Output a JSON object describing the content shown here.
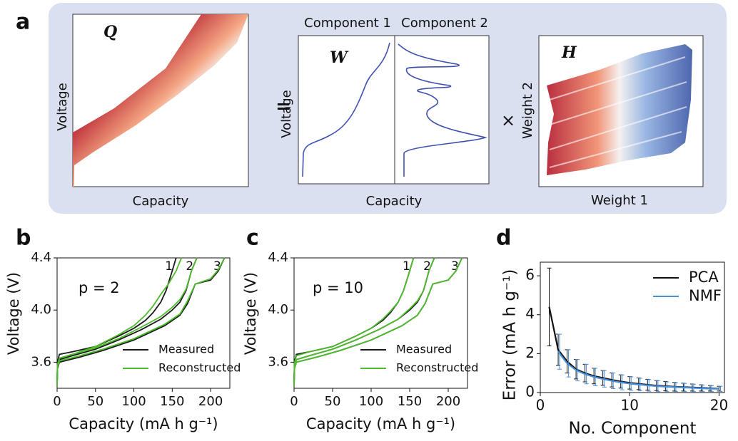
{
  "panel_a": {
    "label": "a",
    "q_title": "Q",
    "q_ylabel": "Voltage",
    "q_xlabel": "Capacity",
    "equals": "=",
    "w_component_1": "Component 1",
    "w_component_2": "Component 2",
    "w_title": "W",
    "w_ylabel": "Voltage",
    "w_xlabel": "Capacity",
    "times": "×",
    "h_title": "H",
    "h_ylabel": "Weight 2",
    "h_xlabel": "Weight 1"
  },
  "chart_data": [
    {
      "type": "line",
      "panel_label": "b",
      "annotation": "p = 2",
      "xlabel": "Capacity (mA h g⁻¹)",
      "ylabel": "Voltage (V)",
      "xlim": [
        0,
        225
      ],
      "ylim": [
        3.4,
        4.4
      ],
      "xticks": [
        0,
        50,
        100,
        150,
        200
      ],
      "yticks": [
        3.6,
        {
          "value": 4,
          "label": "4.0"
        },
        4.4
      ],
      "legend": "lower right",
      "series": [
        {
          "name": "Measured",
          "color": "#1a1a1a",
          "lines": [
            {
              "label": "1",
              "x": [
                0,
                0.5,
                3,
                20,
                50,
                80,
                100,
                115,
                125,
                135,
                142,
                150,
                155
              ],
              "values": [
                3.42,
                3.6,
                3.66,
                3.68,
                3.72,
                3.8,
                3.86,
                3.92,
                3.98,
                4.06,
                4.15,
                4.3,
                4.4
              ]
            },
            {
              "label": "2",
              "x": [
                0,
                0.5,
                3,
                20,
                50,
                80,
                110,
                135,
                150,
                160,
                168,
                175,
                182
              ],
              "values": [
                3.42,
                3.56,
                3.62,
                3.65,
                3.7,
                3.77,
                3.85,
                3.93,
                4.0,
                4.06,
                4.15,
                4.3,
                4.4
              ]
            },
            {
              "label": "3",
              "x": [
                0,
                0.5,
                3,
                30,
                60,
                100,
                140,
                160,
                170,
                180,
                200,
                210,
                218
              ],
              "values": [
                3.42,
                3.55,
                3.6,
                3.64,
                3.69,
                3.77,
                3.88,
                3.96,
                4.05,
                4.2,
                4.23,
                4.3,
                4.4
              ]
            }
          ]
        },
        {
          "name": "Reconstructed",
          "color": "#4cbb2c",
          "lines": [
            {
              "x": [
                0,
                0.5,
                3,
                20,
                50,
                80,
                100,
                115,
                125,
                135,
                145,
                155,
                162
              ],
              "values": [
                3.42,
                3.58,
                3.63,
                3.66,
                3.72,
                3.81,
                3.88,
                3.96,
                4.03,
                4.12,
                4.2,
                4.3,
                4.4
              ]
            },
            {
              "x": [
                0,
                0.5,
                3,
                20,
                50,
                80,
                110,
                135,
                150,
                160,
                168,
                175,
                182
              ],
              "values": [
                3.42,
                3.57,
                3.63,
                3.66,
                3.71,
                3.78,
                3.87,
                3.95,
                4.02,
                4.08,
                4.16,
                4.3,
                4.4
              ]
            },
            {
              "x": [
                0,
                0.5,
                3,
                30,
                60,
                100,
                140,
                160,
                170,
                180,
                200,
                210,
                218
              ],
              "values": [
                3.42,
                3.56,
                3.61,
                3.65,
                3.7,
                3.78,
                3.89,
                3.97,
                4.07,
                4.2,
                4.24,
                4.31,
                4.4
              ]
            }
          ]
        }
      ]
    },
    {
      "type": "line",
      "panel_label": "c",
      "annotation": "p = 10",
      "xlabel": "Capacity (mA h g⁻¹)",
      "ylabel": "Voltage (V)",
      "xlim": [
        0,
        225
      ],
      "ylim": [
        3.4,
        4.4
      ],
      "xticks": [
        0,
        50,
        100,
        150,
        200
      ],
      "yticks": [
        3.6,
        {
          "value": 4,
          "label": "4.0"
        },
        4.4
      ],
      "legend": "lower right",
      "series": [
        {
          "name": "Measured",
          "color": "#1a1a1a",
          "lines": [
            {
              "label": "1",
              "x": [
                0,
                0.5,
                3,
                20,
                50,
                80,
                100,
                115,
                125,
                135,
                142,
                150,
                155
              ],
              "values": [
                3.42,
                3.6,
                3.66,
                3.68,
                3.72,
                3.8,
                3.86,
                3.92,
                3.98,
                4.06,
                4.15,
                4.3,
                4.4
              ]
            },
            {
              "label": "2",
              "x": [
                0,
                0.5,
                3,
                20,
                50,
                80,
                110,
                135,
                150,
                160,
                168,
                175,
                182
              ],
              "values": [
                3.42,
                3.56,
                3.62,
                3.65,
                3.7,
                3.77,
                3.85,
                3.93,
                4.0,
                4.06,
                4.15,
                4.3,
                4.4
              ]
            },
            {
              "label": "3",
              "x": [
                0,
                0.5,
                3,
                30,
                60,
                100,
                140,
                160,
                170,
                180,
                200,
                210,
                218
              ],
              "values": [
                3.42,
                3.55,
                3.6,
                3.64,
                3.69,
                3.77,
                3.88,
                3.96,
                4.05,
                4.2,
                4.23,
                4.3,
                4.4
              ]
            }
          ]
        },
        {
          "name": "Reconstructed",
          "color": "#4cbb2c",
          "lines": [
            {
              "x": [
                0,
                0.5,
                3,
                20,
                50,
                80,
                100,
                115,
                125,
                135,
                142,
                150,
                155
              ],
              "values": [
                3.42,
                3.59,
                3.65,
                3.68,
                3.72,
                3.8,
                3.86,
                3.93,
                3.99,
                4.06,
                4.15,
                4.3,
                4.4
              ]
            },
            {
              "x": [
                0,
                0.5,
                3,
                20,
                50,
                80,
                110,
                135,
                150,
                160,
                168,
                175,
                182
              ],
              "values": [
                3.42,
                3.56,
                3.62,
                3.65,
                3.7,
                3.77,
                3.85,
                3.93,
                4.01,
                4.07,
                4.15,
                4.3,
                4.4
              ]
            },
            {
              "x": [
                0,
                0.5,
                3,
                30,
                60,
                100,
                140,
                160,
                170,
                180,
                200,
                210,
                218
              ],
              "values": [
                3.42,
                3.55,
                3.6,
                3.64,
                3.69,
                3.77,
                3.88,
                3.96,
                4.05,
                4.2,
                4.23,
                4.3,
                4.4
              ]
            }
          ]
        }
      ]
    },
    {
      "type": "line",
      "panel_label": "d",
      "xlabel": "No. Component",
      "ylabel": "Error (mA h g⁻¹)",
      "xlim": [
        0,
        20.6
      ],
      "ylim": [
        0,
        6.7
      ],
      "xticks": [
        0,
        10,
        20
      ],
      "yticks": [
        0,
        2,
        4,
        6
      ],
      "legend": "upper right",
      "x": [
        1,
        2,
        3,
        4,
        5,
        6,
        7,
        8,
        9,
        10,
        11,
        12,
        13,
        14,
        15,
        16,
        17,
        18,
        19,
        20
      ],
      "series": [
        {
          "name": "PCA",
          "color": "#111111",
          "values": [
            4.4,
            2.2,
            1.6,
            1.2,
            1.0,
            0.85,
            0.75,
            0.65,
            0.57,
            0.5,
            0.45,
            0.4,
            0.36,
            0.33,
            0.3,
            0.28,
            0.26,
            0.24,
            0.22,
            0.2
          ],
          "errors": [
            2.0,
            0.8,
            0.6,
            0.5,
            0.45,
            0.4,
            0.38,
            0.36,
            0.34,
            0.32,
            0.3,
            0.28,
            0.26,
            0.24,
            0.22,
            0.2,
            0.18,
            0.16,
            0.14,
            0.12
          ]
        },
        {
          "name": "NMF",
          "color": "#4a90d9",
          "values": [
            null,
            2.1,
            1.5,
            1.15,
            0.95,
            0.8,
            0.7,
            0.6,
            0.52,
            0.46,
            0.41,
            0.37,
            0.33,
            0.3,
            0.28,
            0.26,
            0.24,
            0.22,
            0.2,
            0.19
          ],
          "errors": [
            null,
            0.9,
            0.7,
            0.55,
            0.5,
            0.45,
            0.42,
            0.4,
            0.38,
            0.35,
            0.32,
            0.3,
            0.28,
            0.25,
            0.23,
            0.21,
            0.19,
            0.17,
            0.15,
            0.13
          ]
        }
      ]
    }
  ]
}
